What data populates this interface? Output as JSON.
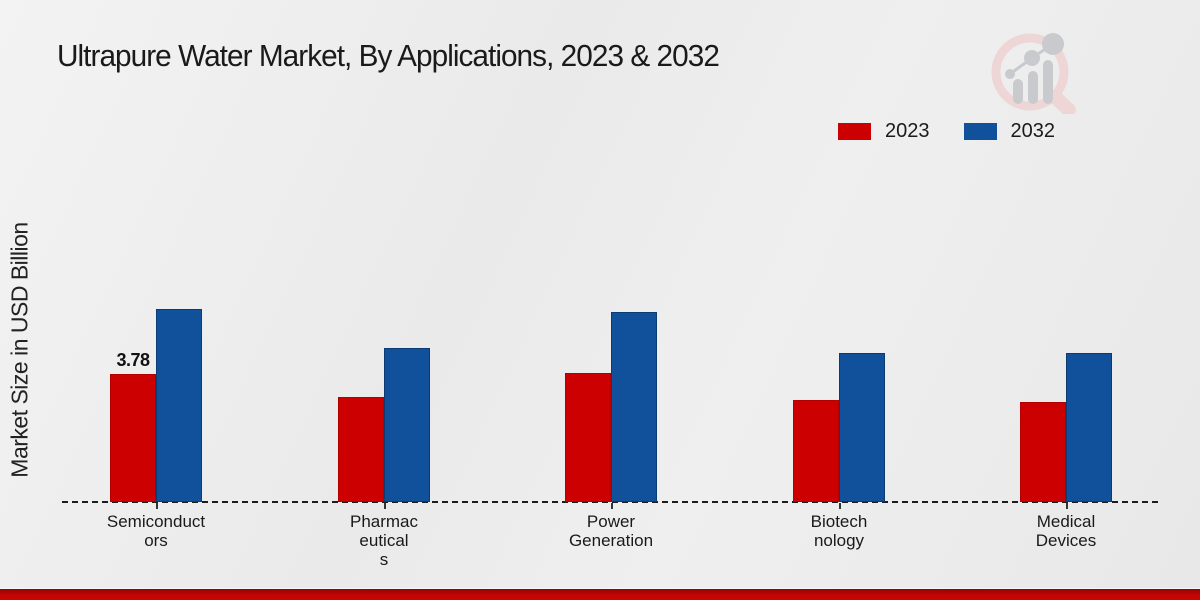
{
  "title": {
    "text": "Ultrapure Water Market, By Applications, 2023 & 2032"
  },
  "ylabel": {
    "text": "Market Size in USD Billion"
  },
  "legend": {
    "position": "top-right",
    "items": [
      {
        "label": "2023",
        "color": "#cc0000"
      },
      {
        "label": "2032",
        "color": "#11519b"
      }
    ]
  },
  "logo": {
    "name": "bar-chart-magnifier-logo"
  },
  "colors": {
    "series_2023": "#cc0000",
    "series_2032": "#11519b",
    "series_2023_edge": "#b40000",
    "series_2032_edge": "#0a3c74",
    "background": "#ebebeb",
    "bottom_strip": "#c40404",
    "text": "#1a1a1a"
  },
  "chart_data": {
    "type": "bar",
    "title": "Ultrapure Water Market, By Applications, 2023 & 2032",
    "xlabel": "",
    "ylabel": "Market Size in USD Billion",
    "categories": [
      "Semiconductors",
      "Pharmaceuticals",
      "Power Generation",
      "Biotechnology",
      "Medical Devices"
    ],
    "category_label_lines": [
      "Semiconduct\nors",
      "Pharmac\neutical\ns",
      "Power\nGeneration",
      "Biotech\nnology",
      "Medical\nDevices"
    ],
    "series": [
      {
        "name": "2023",
        "color": "#cc0000",
        "edge_color": "#b40000",
        "values": [
          3.78,
          3.1,
          3.8,
          3.0,
          2.95
        ]
      },
      {
        "name": "2032",
        "color": "#11519b",
        "edge_color": "#0a3c74",
        "values": [
          5.7,
          4.55,
          5.6,
          4.4,
          4.4
        ]
      }
    ],
    "data_labels": [
      {
        "series_index": 0,
        "category_index": 0,
        "text": "3.78"
      }
    ],
    "ylim": [
      0,
      7
    ],
    "grid": false,
    "baseline_style": "dashed",
    "legend_position": "top-right"
  }
}
